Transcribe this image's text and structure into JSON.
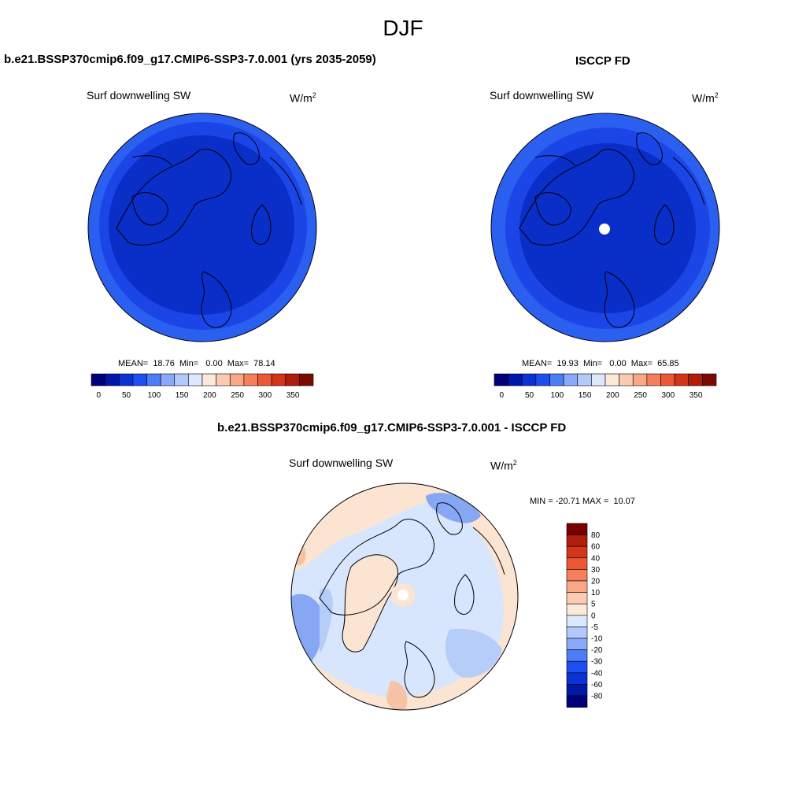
{
  "figure": {
    "title": "DJF"
  },
  "panels": {
    "model": {
      "title": "b.e21.BSSP370cmip6.f09_g17.CMIP6-SSP3-7.0.001 (yrs 2035-2059)",
      "variable": "Surf downwelling SW",
      "units": "W/m",
      "units_sup": "2",
      "stats": "MEAN=  18.76  Min=   0.00  Max=  78.14"
    },
    "obs": {
      "title": "ISCCP FD",
      "variable": "Surf downwelling SW",
      "units": "W/m",
      "units_sup": "2",
      "stats": "MEAN=  19.93  Min=   0.00  Max=  65.85"
    },
    "diff": {
      "title": "b.e21.BSSP370cmip6.f09_g17.CMIP6-SSP3-7.0.001 - ISCCP FD",
      "variable": "Surf downwelling SW",
      "units": "W/m",
      "units_sup": "2",
      "stats": "MIN = -20.71 MAX =  10.07"
    }
  },
  "colorbars": {
    "abs": {
      "colors": [
        "#00007a",
        "#0018a8",
        "#0a33d6",
        "#1c4fef",
        "#4d7cf7",
        "#8aa9f9",
        "#b3c9fb",
        "#dbe8fd",
        "#fde9d8",
        "#fccab0",
        "#f9a886",
        "#f57f5a",
        "#ec5834",
        "#d43418",
        "#b01d0a",
        "#7c0a00"
      ],
      "labels": [
        "0",
        "50",
        "100",
        "150",
        "200",
        "250",
        "300",
        "350"
      ]
    },
    "diff": {
      "colors": [
        "#7a0000",
        "#b01d0a",
        "#d43418",
        "#ec5834",
        "#f57f5a",
        "#f9a886",
        "#fccab0",
        "#fde9d8",
        "#dbe8fd",
        "#b3c9fb",
        "#8aa9f9",
        "#4d7cf7",
        "#1c4fef",
        "#0a33d6",
        "#0018a8",
        "#00007a"
      ],
      "labels": [
        "80",
        "60",
        "40",
        "30",
        "20",
        "10",
        "5",
        "0",
        "-5",
        "-10",
        "-20",
        "-30",
        "-40",
        "-60",
        "-80"
      ]
    }
  },
  "map_colors": {
    "dark_blue": "#0a2ec8",
    "mid_blue": "#1b45e6",
    "light_blue": "#2a5ff0",
    "diff_base": "#d7e6fc",
    "diff_pos": "#fbe4d2",
    "diff_blue": "#86a7f4",
    "diff_mid": "#b6cdfa",
    "diff_orange": "#f6c3a6"
  },
  "chart_data": {
    "type": "heatmap",
    "season": "DJF",
    "projection": "polar stereographic (Northern Hemisphere)",
    "panels": [
      {
        "name": "model",
        "variable": "Surf downwelling SW",
        "units": "W/m2",
        "mean": 18.76,
        "min": 0.0,
        "max": 78.14,
        "levels": [
          0,
          50,
          100,
          150,
          200,
          250,
          300,
          350
        ]
      },
      {
        "name": "ISCCP FD",
        "variable": "Surf downwelling SW",
        "units": "W/m2",
        "mean": 19.93,
        "min": 0.0,
        "max": 65.85,
        "levels": [
          0,
          50,
          100,
          150,
          200,
          250,
          300,
          350
        ]
      },
      {
        "name": "difference",
        "variable": "Surf downwelling SW",
        "units": "W/m2",
        "min": -20.71,
        "max": 10.07,
        "levels": [
          -80,
          -60,
          -40,
          -30,
          -20,
          -10,
          -5,
          0,
          5,
          10,
          20,
          30,
          40,
          60,
          80
        ]
      }
    ]
  }
}
